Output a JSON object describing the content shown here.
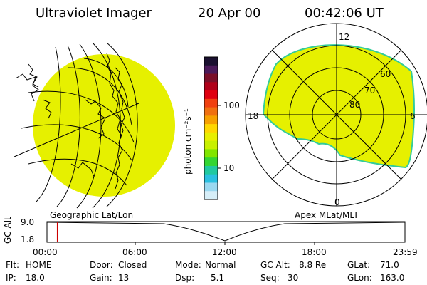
{
  "header": {
    "title": "Ultraviolet Imager",
    "date": "20 Apr 00",
    "time": "00:42:06 UT"
  },
  "colorbar": {
    "label": "photon cm⁻²s⁻¹",
    "ticks": [
      "100",
      "10"
    ],
    "colors_top_to_bottom": [
      "#1a1030",
      "#4b1a5a",
      "#7a0f2a",
      "#b0001a",
      "#e00010",
      "#f04010",
      "#f07010",
      "#f7a000",
      "#ffd700",
      "#e8ef00",
      "#c8f000",
      "#80e600",
      "#33d633",
      "#20c9a0",
      "#2ac0e0",
      "#9ad8f0",
      "#d6eef8"
    ]
  },
  "left_panel": {
    "name": "Geographic Lat/Lon",
    "fill": "#e6f000"
  },
  "right_panel": {
    "name": "Apex MLat/MLT",
    "fill": "#e6f000",
    "edge": "#33cc99",
    "mlt_labels": {
      "top": "12",
      "left": "18",
      "right": "6",
      "bottom": "0"
    },
    "lat_labels": [
      "60",
      "70",
      "80"
    ]
  },
  "timeline": {
    "ylabel": "GC Alt",
    "yticks": [
      "9.0",
      "1.8"
    ],
    "xticks": [
      "00:00",
      "06:00",
      "12:00",
      "18:00",
      "23:59"
    ],
    "marker_time": "00:42"
  },
  "status": {
    "row1": [
      {
        "label": "Flt:",
        "value": "HOME"
      },
      {
        "label": "Door:",
        "value": "Closed"
      },
      {
        "label": "Mode:",
        "value": "Normal"
      },
      {
        "label": "GC Alt:",
        "value": "8.8 Re"
      },
      {
        "label": "GLat:",
        "value": "71.0"
      }
    ],
    "row2": [
      {
        "label": "IP:",
        "value": "18.0"
      },
      {
        "label": "Gain:",
        "value": "13"
      },
      {
        "label": "Dsp:",
        "value": "5.1"
      },
      {
        "label": "Seq:",
        "value": "30"
      },
      {
        "label": "GLon:",
        "value": "163.0"
      }
    ]
  }
}
